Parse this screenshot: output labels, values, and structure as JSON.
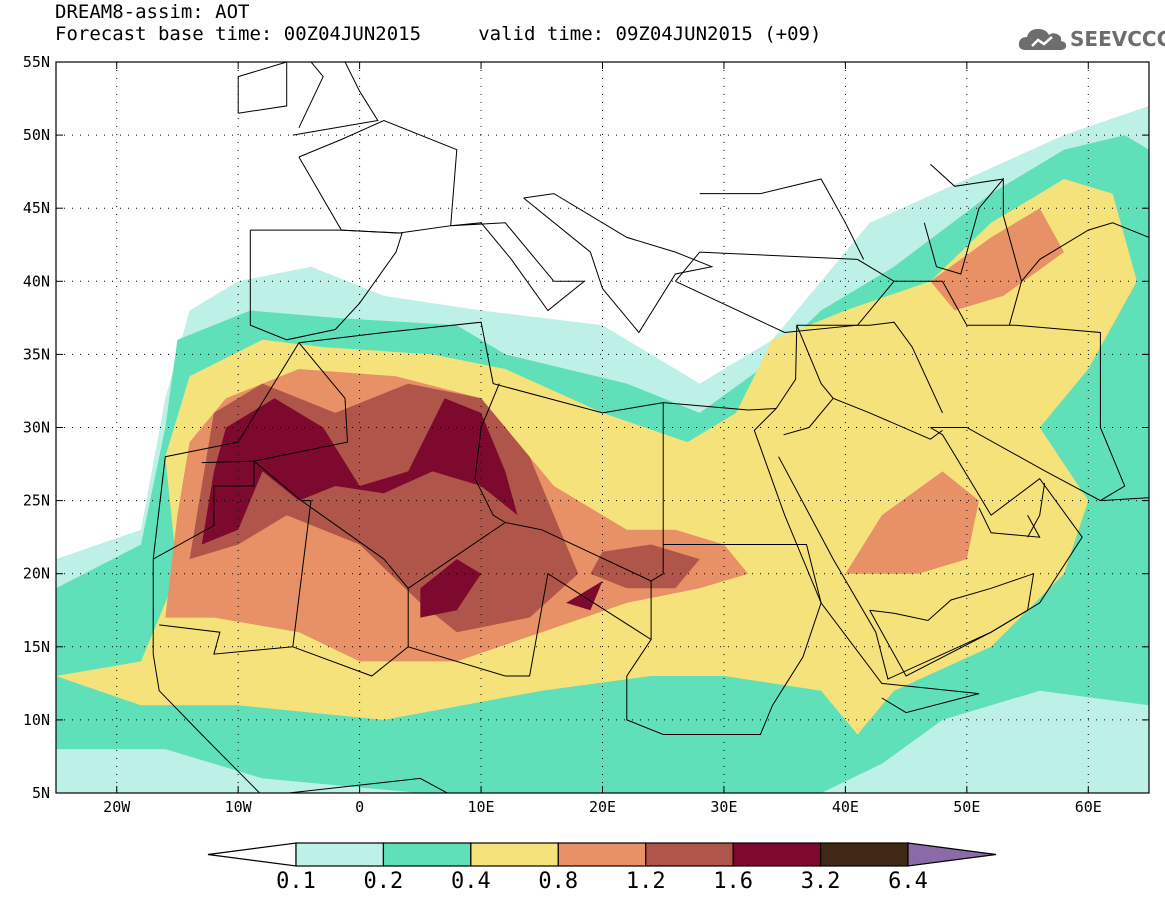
{
  "header": {
    "title_line1": "DREAM8-assim: AOT",
    "title_line2": "Forecast base time: 00Z04JUN2015     valid time: 09Z04JUN2015 (+09)"
  },
  "logo": {
    "text": "SEEVCCC",
    "icon": "cloud-icon",
    "color": "#6d6d6d"
  },
  "map": {
    "projection": "lat-lon",
    "lon_range": [
      -25,
      65
    ],
    "lat_range": [
      5,
      55
    ],
    "grid": "dotted",
    "lat_labels": [
      {
        "value": 55,
        "label": "55N"
      },
      {
        "value": 50,
        "label": "50N"
      },
      {
        "value": 45,
        "label": "45N"
      },
      {
        "value": 40,
        "label": "40N"
      },
      {
        "value": 35,
        "label": "35N"
      },
      {
        "value": 30,
        "label": "30N"
      },
      {
        "value": 25,
        "label": "25N"
      },
      {
        "value": 20,
        "label": "20N"
      },
      {
        "value": 15,
        "label": "15N"
      },
      {
        "value": 10,
        "label": "10N"
      },
      {
        "value": 5,
        "label": "5N"
      }
    ],
    "lon_labels": [
      {
        "value": -20,
        "label": "20W"
      },
      {
        "value": -10,
        "label": "10W"
      },
      {
        "value": 0,
        "label": "0"
      },
      {
        "value": 10,
        "label": "10E"
      },
      {
        "value": 20,
        "label": "20E"
      },
      {
        "value": 30,
        "label": "30E"
      },
      {
        "value": 40,
        "label": "40E"
      },
      {
        "value": 50,
        "label": "50E"
      },
      {
        "value": 60,
        "label": "60E"
      }
    ]
  },
  "colorbar": {
    "thresholds": [
      "0.1",
      "0.2",
      "0.4",
      "0.8",
      "1.2",
      "1.6",
      "3.2",
      "6.4"
    ],
    "colors": [
      "#ffffff",
      "#bdf0e6",
      "#5fe0b8",
      "#f6e27a",
      "#e89066",
      "#b0554a",
      "#7d0a2e",
      "#402816",
      "#8b6aa8"
    ]
  },
  "dust_field": {
    "levels": [
      0.1,
      0.2,
      0.4,
      0.8,
      1.2,
      1.6
    ],
    "regions": {
      "0.1": [
        [
          [
            -25,
            5
          ],
          [
            -25,
            21
          ],
          [
            -18,
            23
          ],
          [
            -16,
            32
          ],
          [
            -14,
            38
          ],
          [
            -10,
            40
          ],
          [
            -4,
            41
          ],
          [
            2,
            39
          ],
          [
            10,
            38
          ],
          [
            20,
            37
          ],
          [
            28,
            33
          ],
          [
            34,
            36
          ],
          [
            42,
            44
          ],
          [
            50,
            47
          ],
          [
            58,
            50
          ],
          [
            65,
            52
          ],
          [
            65,
            5
          ]
        ]
      ],
      "0.2": [
        [
          [
            -25,
            8
          ],
          [
            -25,
            19
          ],
          [
            -18,
            22
          ],
          [
            -16,
            30
          ],
          [
            -15,
            36
          ],
          [
            -9,
            38
          ],
          [
            -2,
            37.5
          ],
          [
            8,
            37
          ],
          [
            12,
            35
          ],
          [
            22,
            33
          ],
          [
            28,
            31
          ],
          [
            33,
            34
          ],
          [
            38,
            38
          ],
          [
            44,
            41
          ],
          [
            52,
            46
          ],
          [
            58,
            49
          ],
          [
            63,
            50
          ],
          [
            65,
            49
          ],
          [
            65,
            11
          ],
          [
            56,
            12
          ],
          [
            48,
            10
          ],
          [
            43,
            7
          ],
          [
            38,
            5
          ],
          [
            20,
            5
          ],
          [
            5,
            5
          ],
          [
            -8,
            6
          ],
          [
            -16,
            8
          ]
        ]
      ],
      "0.4": [
        [
          [
            -25,
            13
          ],
          [
            -18,
            14
          ],
          [
            -15,
            20
          ],
          [
            -16,
            28
          ],
          [
            -14,
            33.5
          ],
          [
            -8,
            36
          ],
          [
            -3,
            35.5
          ],
          [
            6,
            35
          ],
          [
            12,
            34
          ],
          [
            20,
            31
          ],
          [
            27,
            29
          ],
          [
            31,
            31
          ],
          [
            34,
            36
          ],
          [
            40,
            38
          ],
          [
            47,
            40
          ],
          [
            52,
            44
          ],
          [
            58,
            47
          ],
          [
            62,
            46
          ],
          [
            64,
            40
          ],
          [
            60,
            34
          ],
          [
            56,
            30
          ],
          [
            60,
            25
          ],
          [
            58,
            20
          ],
          [
            52,
            15
          ],
          [
            44,
            12
          ],
          [
            41,
            9
          ],
          [
            38,
            12
          ],
          [
            30,
            13
          ],
          [
            24,
            13
          ],
          [
            15,
            12
          ],
          [
            2,
            10
          ],
          [
            -10,
            11
          ],
          [
            -18,
            11
          ]
        ]
      ],
      "0.8": [
        [
          [
            -16,
            17
          ],
          [
            -15,
            24
          ],
          [
            -14,
            29
          ],
          [
            -11,
            32
          ],
          [
            -5,
            34
          ],
          [
            3,
            33.5
          ],
          [
            10,
            32
          ],
          [
            16,
            26
          ],
          [
            22,
            23
          ],
          [
            26,
            23
          ],
          [
            30,
            22
          ],
          [
            32,
            20
          ],
          [
            28,
            19
          ],
          [
            22,
            18
          ],
          [
            15,
            16
          ],
          [
            8,
            14
          ],
          [
            0,
            14
          ],
          [
            -5,
            16
          ],
          [
            -12,
            17
          ]
        ],
        [
          [
            47,
            40
          ],
          [
            52,
            43
          ],
          [
            56,
            45
          ],
          [
            58,
            42
          ],
          [
            53,
            39
          ],
          [
            49,
            38
          ]
        ],
        [
          [
            40,
            20
          ],
          [
            43,
            24
          ],
          [
            48,
            27
          ],
          [
            51,
            25
          ],
          [
            50,
            21
          ],
          [
            46,
            20
          ]
        ]
      ],
      "1.2": [
        [
          [
            -14,
            21
          ],
          [
            -13,
            26
          ],
          [
            -12,
            31
          ],
          [
            -8,
            33
          ],
          [
            -2,
            31
          ],
          [
            4,
            33
          ],
          [
            10,
            32
          ],
          [
            14,
            28
          ],
          [
            16,
            24
          ],
          [
            18,
            20
          ],
          [
            14,
            17
          ],
          [
            8,
            16
          ],
          [
            5,
            18
          ],
          [
            0,
            22
          ],
          [
            -6,
            24
          ],
          [
            -10,
            22
          ]
        ],
        [
          [
            19,
            20
          ],
          [
            22,
            19
          ],
          [
            26,
            19
          ],
          [
            28,
            21
          ],
          [
            24,
            22
          ],
          [
            20,
            21.5
          ]
        ]
      ],
      "1.6": [
        [
          [
            -13,
            22
          ],
          [
            -12,
            27
          ],
          [
            -11,
            30
          ],
          [
            -7,
            32
          ],
          [
            -3,
            30
          ],
          [
            0,
            26
          ],
          [
            4,
            27
          ],
          [
            7,
            32
          ],
          [
            10,
            31
          ],
          [
            12,
            27
          ],
          [
            13,
            24
          ],
          [
            10,
            26
          ],
          [
            6,
            27
          ],
          [
            2,
            25.5
          ],
          [
            -2,
            26
          ],
          [
            -5,
            25
          ],
          [
            -8,
            27
          ],
          [
            -10,
            23
          ]
        ],
        [
          [
            5,
            19
          ],
          [
            8,
            21
          ],
          [
            10,
            20
          ],
          [
            8,
            17.5
          ],
          [
            5,
            17
          ]
        ],
        [
          [
            17,
            18
          ],
          [
            20,
            19.5
          ],
          [
            19,
            17.5
          ]
        ]
      ]
    }
  }
}
